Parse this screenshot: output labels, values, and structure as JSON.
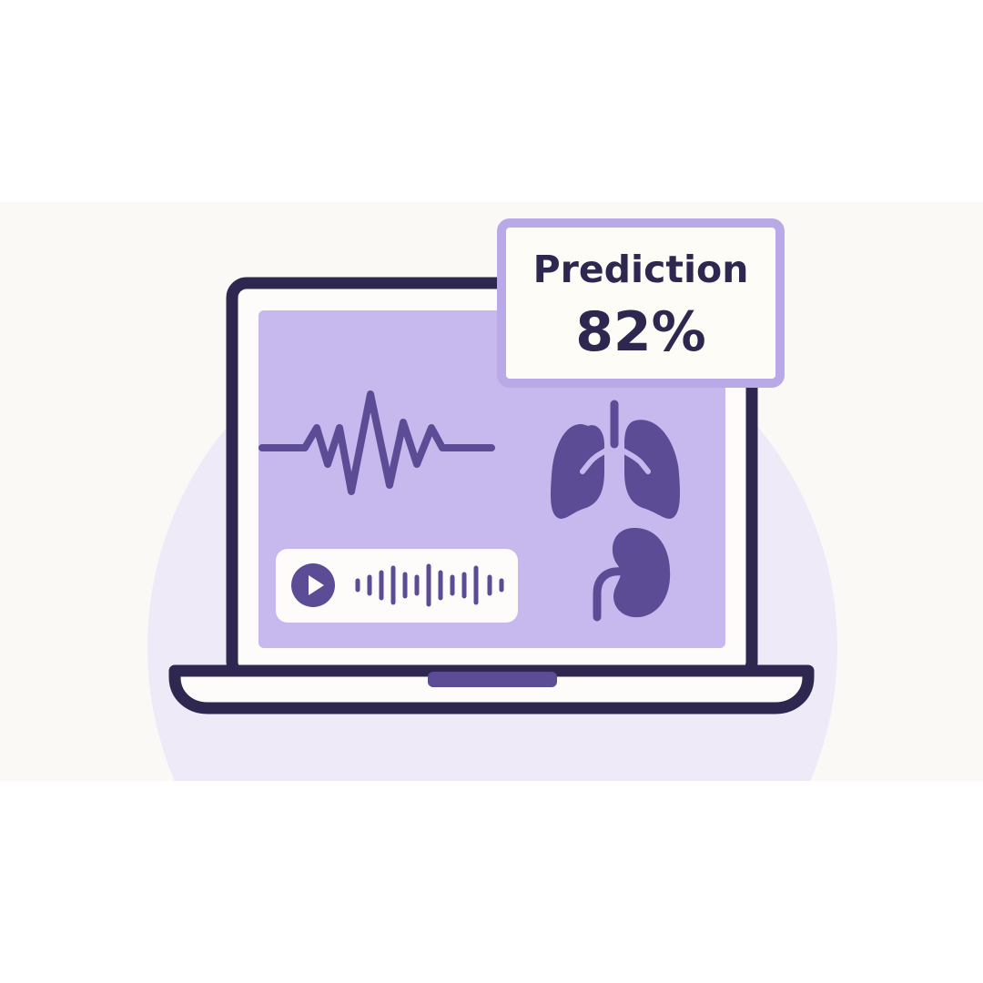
{
  "prediction": {
    "label": "Prediction",
    "value": "82%"
  },
  "icons": [
    "heartbeat-waveform-icon",
    "play-icon",
    "audio-waveform-icon",
    "lungs-icon",
    "kidney-icon"
  ],
  "colors": {
    "outline": "#2e2850",
    "screen": "#c7b9ee",
    "accent": "#5c4b95",
    "card_border": "#b9a9e6",
    "backdrop": "#eeeaf8"
  }
}
